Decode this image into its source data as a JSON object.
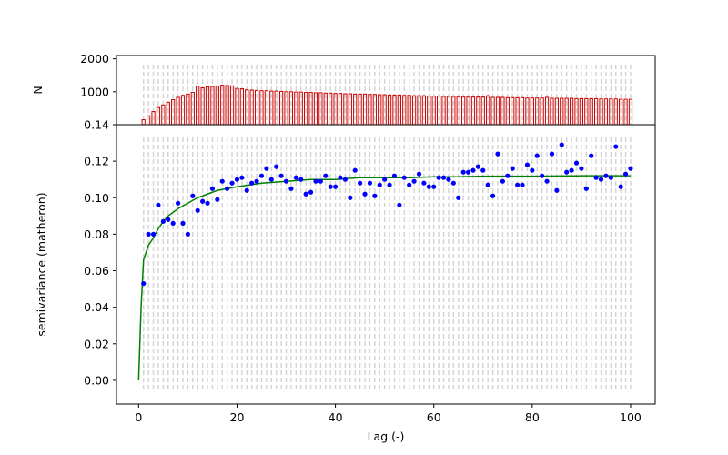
{
  "chart_data": [
    {
      "type": "bar",
      "panel": "top",
      "ylabel": "N",
      "xlabel": "",
      "color": "#d00000",
      "xlim": [
        -4.5,
        105
      ],
      "ylim": [
        0,
        2100
      ],
      "yticks": [
        1000,
        2000
      ],
      "bar_x": [
        1,
        2,
        3,
        4,
        5,
        6,
        7,
        8,
        9,
        10,
        11,
        12,
        13,
        14,
        15,
        16,
        17,
        18,
        19,
        20,
        21,
        22,
        23,
        24,
        25,
        26,
        27,
        28,
        29,
        30,
        31,
        32,
        33,
        34,
        35,
        36,
        37,
        38,
        39,
        40,
        41,
        42,
        43,
        44,
        45,
        46,
        47,
        48,
        49,
        50,
        51,
        52,
        53,
        54,
        55,
        56,
        57,
        58,
        59,
        60,
        61,
        62,
        63,
        64,
        65,
        66,
        67,
        68,
        69,
        70,
        71,
        72,
        73,
        74,
        75,
        76,
        77,
        78,
        79,
        80,
        81,
        82,
        83,
        84,
        85,
        86,
        87,
        88,
        89,
        90,
        91,
        92,
        93,
        94,
        95,
        96,
        97,
        98,
        99,
        100
      ],
      "values": [
        150,
        270,
        400,
        520,
        600,
        680,
        760,
        830,
        890,
        930,
        980,
        1170,
        1120,
        1150,
        1160,
        1170,
        1200,
        1190,
        1180,
        1100,
        1090,
        1060,
        1050,
        1040,
        1030,
        1030,
        1020,
        1020,
        1010,
        1000,
        1000,
        990,
        990,
        980,
        980,
        970,
        970,
        960,
        960,
        950,
        950,
        940,
        940,
        930,
        930,
        930,
        920,
        920,
        910,
        910,
        900,
        900,
        900,
        890,
        890,
        880,
        880,
        880,
        870,
        870,
        870,
        860,
        860,
        860,
        850,
        850,
        850,
        840,
        840,
        840,
        880,
        830,
        830,
        830,
        820,
        820,
        820,
        820,
        810,
        810,
        810,
        810,
        830,
        800,
        800,
        800,
        800,
        800,
        790,
        790,
        790,
        790,
        790,
        780,
        780,
        780,
        780,
        770,
        770,
        770
      ]
    },
    {
      "type": "scatter",
      "panel": "bottom",
      "xlabel": "Lag (-)",
      "ylabel": "semivariance (matheron)",
      "xlim": [
        -4.5,
        105
      ],
      "ylim": [
        -0.013,
        0.14
      ],
      "xticks": [
        0,
        20,
        40,
        60,
        80,
        100
      ],
      "yticks": [
        0.0,
        0.02,
        0.04,
        0.06,
        0.08,
        0.1,
        0.12,
        0.14
      ],
      "grid": "vertical dashed lines at each lag bin",
      "series": [
        {
          "kind": "points",
          "color": "#0000ff",
          "x": [
            1,
            2,
            3,
            4,
            5,
            6,
            7,
            8,
            9,
            10,
            11,
            12,
            13,
            14,
            15,
            16,
            17,
            18,
            19,
            20,
            21,
            22,
            23,
            24,
            25,
            26,
            27,
            28,
            29,
            30,
            31,
            32,
            33,
            34,
            35,
            36,
            37,
            38,
            39,
            40,
            41,
            42,
            43,
            44,
            45,
            46,
            47,
            48,
            49,
            50,
            51,
            52,
            53,
            54,
            55,
            56,
            57,
            58,
            59,
            60,
            61,
            62,
            63,
            64,
            65,
            66,
            67,
            68,
            69,
            70,
            71,
            72,
            73,
            74,
            75,
            76,
            77,
            78,
            79,
            80,
            81,
            82,
            83,
            84,
            85,
            86,
            87,
            88,
            89,
            90,
            91,
            92,
            93,
            94,
            95,
            96,
            97,
            98,
            99,
            100
          ],
          "y": [
            0.053,
            0.08,
            0.08,
            0.096,
            0.087,
            0.088,
            0.086,
            0.097,
            0.086,
            0.08,
            0.101,
            0.093,
            0.098,
            0.097,
            0.105,
            0.099,
            0.109,
            0.105,
            0.108,
            0.11,
            0.111,
            0.104,
            0.108,
            0.109,
            0.112,
            0.116,
            0.11,
            0.117,
            0.112,
            0.109,
            0.105,
            0.111,
            0.11,
            0.102,
            0.103,
            0.109,
            0.109,
            0.112,
            0.106,
            0.106,
            0.111,
            0.11,
            0.1,
            0.115,
            0.108,
            0.102,
            0.108,
            0.101,
            0.107,
            0.11,
            0.107,
            0.112,
            0.096,
            0.111,
            0.107,
            0.109,
            0.113,
            0.108,
            0.106,
            0.106,
            0.111,
            0.111,
            0.11,
            0.108,
            0.1,
            0.114,
            0.114,
            0.115,
            0.117,
            0.115,
            0.107,
            0.101,
            0.124,
            0.109,
            0.112,
            0.116,
            0.107,
            0.107,
            0.118,
            0.115,
            0.123,
            0.112,
            0.109,
            0.124,
            0.104,
            0.129,
            0.114,
            0.115,
            0.119,
            0.116,
            0.105,
            0.123,
            0.111,
            0.11,
            0.112,
            0.111,
            0.128,
            0.106,
            0.113,
            0.116
          ]
        },
        {
          "kind": "line",
          "color": "#008000",
          "model": {
            "sill": 0.112,
            "nugget": 0.0
          },
          "x": [
            0,
            0.5,
            1,
            2,
            3,
            4,
            5,
            6,
            7,
            8,
            10,
            12,
            14,
            16,
            18,
            20,
            25,
            30,
            35,
            40,
            45,
            50,
            55,
            60,
            65,
            70,
            75,
            80,
            85,
            90,
            95,
            100
          ],
          "y": [
            0.0,
            0.04,
            0.066,
            0.074,
            0.078,
            0.083,
            0.087,
            0.09,
            0.092,
            0.094,
            0.097,
            0.1,
            0.102,
            0.104,
            0.105,
            0.106,
            0.108,
            0.109,
            0.11,
            0.11,
            0.111,
            0.111,
            0.111,
            0.1115,
            0.1115,
            0.1118,
            0.1118,
            0.1118,
            0.1119,
            0.112,
            0.112,
            0.112
          ]
        }
      ]
    }
  ]
}
